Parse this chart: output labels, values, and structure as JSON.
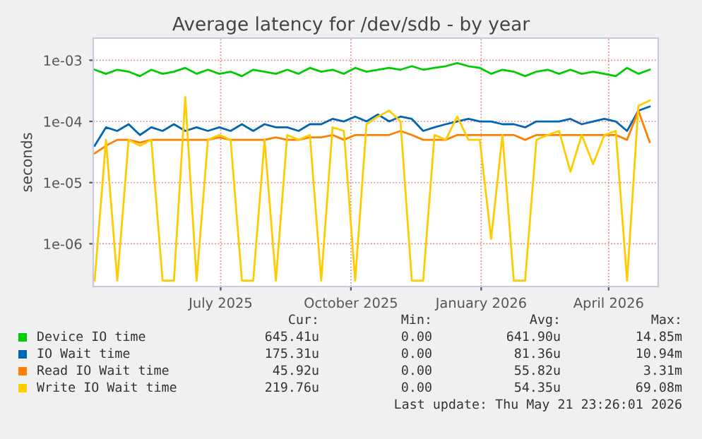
{
  "chart_data": {
    "type": "line",
    "title": "Average latency for /dev/sdb - by year",
    "ylabel": "seconds",
    "log": "y",
    "grid": true,
    "legend": "bottom",
    "marker": "none",
    "line_style": "solid",
    "xlim": [
      "2025-04-17",
      "2026-05-21"
    ],
    "xticks": [
      {
        "value": "2025-07-16",
        "label": "July 2025"
      },
      {
        "value": "2025-10-16",
        "label": "October 2025"
      },
      {
        "value": "2026-01-16",
        "label": "January 2026"
      },
      {
        "value": "2026-04-16",
        "label": "April 2026"
      }
    ],
    "ylim": [
      2e-07,
      0.0023
    ],
    "yticks": [
      {
        "value": 1e-06,
        "label": "1e-06"
      },
      {
        "value": 1e-05,
        "label": "1e-05"
      },
      {
        "value": 0.0001,
        "label": "1e-04"
      },
      {
        "value": 0.001,
        "label": "1e-03"
      }
    ],
    "x": [
      "2025-04-18",
      "2025-04-26",
      "2025-05-04",
      "2025-05-12",
      "2025-05-20",
      "2025-05-28",
      "2025-06-05",
      "2025-06-13",
      "2025-06-21",
      "2025-06-29",
      "2025-07-07",
      "2025-07-15",
      "2025-07-23",
      "2025-07-31",
      "2025-08-08",
      "2025-08-16",
      "2025-08-24",
      "2025-09-01",
      "2025-09-09",
      "2025-09-17",
      "2025-09-25",
      "2025-10-03",
      "2025-10-11",
      "2025-10-19",
      "2025-10-27",
      "2025-11-04",
      "2025-11-12",
      "2025-11-20",
      "2025-11-28",
      "2025-12-06",
      "2025-12-14",
      "2025-12-22",
      "2025-12-30",
      "2026-01-07",
      "2026-01-15",
      "2026-01-23",
      "2026-01-31",
      "2026-02-08",
      "2026-02-16",
      "2026-02-24",
      "2026-03-04",
      "2026-03-12",
      "2026-03-20",
      "2026-03-28",
      "2026-04-05",
      "2026-04-13",
      "2026-04-21",
      "2026-04-29",
      "2026-05-07",
      "2026-05-15"
    ],
    "series": [
      {
        "name": "Device IO time",
        "color": "#00cc00",
        "values": [
          0.0007,
          0.0006,
          0.0007,
          0.00065,
          0.00055,
          0.0007,
          0.0006,
          0.00065,
          0.00075,
          0.0006,
          0.0007,
          0.0006,
          0.00065,
          0.00055,
          0.0007,
          0.00065,
          0.0006,
          0.0007,
          0.0006,
          0.00075,
          0.00065,
          0.0007,
          0.0006,
          0.00075,
          0.00065,
          0.0007,
          0.00075,
          0.0007,
          0.0008,
          0.0007,
          0.00075,
          0.0008,
          0.0009,
          0.0008,
          0.00075,
          0.0006,
          0.0007,
          0.00065,
          0.00055,
          0.00065,
          0.0007,
          0.0006,
          0.0007,
          0.0006,
          0.00065,
          0.0006,
          0.00055,
          0.00075,
          0.0006,
          0.0007
        ]
      },
      {
        "name": "IO Wait time",
        "color": "#0066b3",
        "values": [
          4e-05,
          8e-05,
          7e-05,
          9e-05,
          6e-05,
          8e-05,
          7e-05,
          9e-05,
          7e-05,
          8e-05,
          7e-05,
          8e-05,
          7e-05,
          9e-05,
          7e-05,
          9e-05,
          8e-05,
          8e-05,
          7e-05,
          9e-05,
          9e-05,
          0.00011,
          0.0001,
          0.00012,
          0.0001,
          0.00013,
          0.0001,
          0.00012,
          0.00011,
          7e-05,
          8e-05,
          9e-05,
          0.0001,
          0.00011,
          0.0001,
          0.0001,
          9e-05,
          9e-05,
          8e-05,
          0.0001,
          0.0001,
          0.0001,
          0.00011,
          9e-05,
          0.0001,
          0.00011,
          0.0001,
          7e-05,
          0.00015,
          0.000175
        ]
      },
      {
        "name": "Read IO Wait time",
        "color": "#ff8000",
        "values": [
          3e-05,
          4e-05,
          5e-05,
          5e-05,
          4.5e-05,
          5e-05,
          5e-05,
          5e-05,
          5e-05,
          5e-05,
          5e-05,
          5.5e-05,
          5e-05,
          5e-05,
          5e-05,
          5e-05,
          5.5e-05,
          5e-05,
          5e-05,
          5.5e-05,
          5.5e-05,
          6e-05,
          5e-05,
          6e-05,
          6e-05,
          6e-05,
          6e-05,
          7e-05,
          6e-05,
          5e-05,
          5e-05,
          5e-05,
          6e-05,
          6e-05,
          6e-05,
          6e-05,
          6e-05,
          6e-05,
          5e-05,
          6e-05,
          6e-05,
          6e-05,
          6e-05,
          6e-05,
          6e-05,
          6e-05,
          6e-05,
          5e-05,
          0.00015,
          4.59e-05
        ]
      },
      {
        "name": "Write IO Wait time",
        "color": "#ffcc00",
        "values": [
          2.5e-07,
          5e-05,
          2.5e-07,
          5e-05,
          4e-05,
          5e-05,
          2.5e-07,
          2.5e-07,
          0.00025,
          2.5e-07,
          5e-05,
          6e-05,
          5e-05,
          2.5e-07,
          2.5e-07,
          5e-05,
          2.5e-07,
          6e-05,
          5e-05,
          6e-05,
          2.5e-07,
          8e-05,
          7e-05,
          2.5e-07,
          9e-05,
          0.00012,
          0.00015,
          0.0001,
          2.5e-07,
          2.5e-07,
          6e-05,
          5e-05,
          0.00012,
          5e-05,
          5e-05,
          1.2e-06,
          6e-05,
          2.5e-07,
          2.5e-07,
          5e-05,
          6e-05,
          7e-05,
          1.5e-05,
          6e-05,
          2e-05,
          6e-05,
          7e-05,
          2.5e-07,
          0.00018,
          0.00022
        ]
      }
    ],
    "annotations": [
      "Cur:",
      "Min:",
      "Avg:",
      "Max:",
      "645.41u",
      "0.00",
      "641.90u",
      "14.85m",
      "175.31u",
      "0.00",
      "81.36u",
      "10.94m",
      "45.92u",
      "0.00",
      "55.82u",
      "3.31m",
      "219.76u",
      "0.00",
      "54.35u",
      "69.08m",
      "Last update: Thu May 21 23:26:01 2026"
    ]
  }
}
